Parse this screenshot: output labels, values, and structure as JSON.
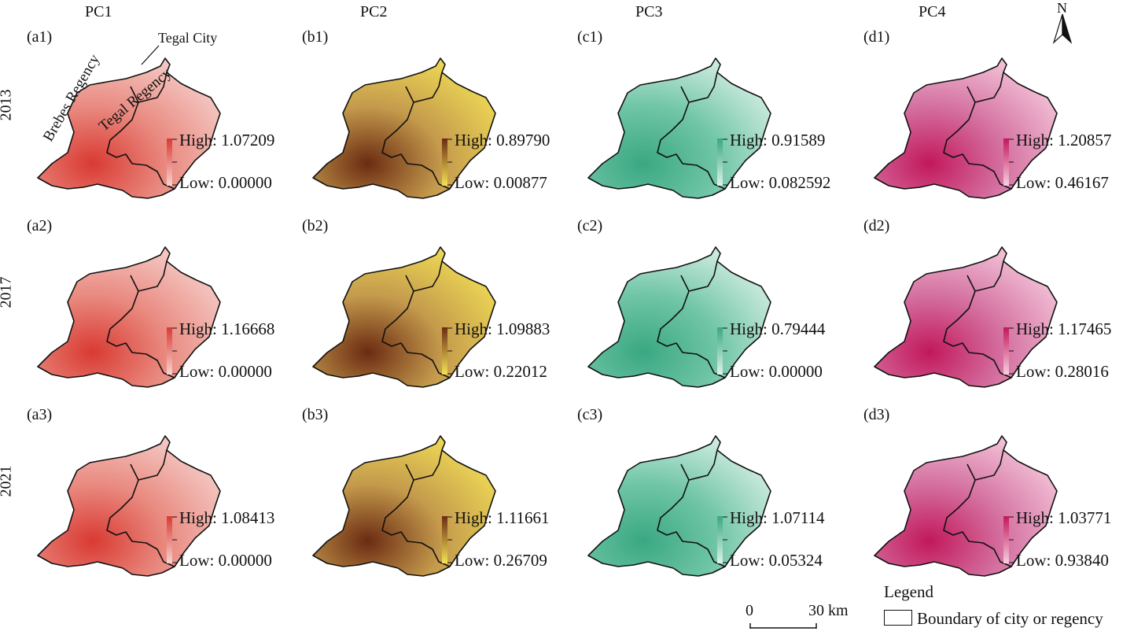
{
  "columns": [
    "PC1",
    "PC2",
    "PC3",
    "PC4"
  ],
  "rows": [
    "2013",
    "2017",
    "2021"
  ],
  "panels": [
    [
      {
        "label": "(a1)",
        "high": "High: 1.07209",
        "low": "Low: 0.00000"
      },
      {
        "label": "(b1)",
        "high": "High: 0.89790",
        "low": "Low: 0.00877"
      },
      {
        "label": "(c1)",
        "high": "High: 0.91589",
        "low": "Low: 0.082592"
      },
      {
        "label": "(d1)",
        "high": "High: 1.20857",
        "low": "Low: 0.46167"
      }
    ],
    [
      {
        "label": "(a2)",
        "high": "High: 1.16668",
        "low": "Low: 0.00000"
      },
      {
        "label": "(b2)",
        "high": "High: 1.09883",
        "low": "Low: 0.22012"
      },
      {
        "label": "(c2)",
        "high": "High: 0.79444",
        "low": "Low: 0.00000"
      },
      {
        "label": "(d2)",
        "high": "High: 1.17465",
        "low": "Low: 0.28016"
      }
    ],
    [
      {
        "label": "(a3)",
        "high": "High: 1.08413",
        "low": "Low: 0.00000"
      },
      {
        "label": "(b3)",
        "high": "High: 1.11661",
        "low": "Low: 0.26709"
      },
      {
        "label": "(c3)",
        "high": "High: 1.07114",
        "low": "Low: 0.05324"
      },
      {
        "label": "(d3)",
        "high": "High: 1.03771",
        "low": "Low: 0.93840"
      }
    ]
  ],
  "colors": {
    "pc1": {
      "low": "#f6d4d0",
      "high": "#d93a32",
      "fill": "#e98a80"
    },
    "pc2": {
      "low": "#f4e257",
      "high": "#6b2b12",
      "fill": "#c49a4c"
    },
    "pc3": {
      "low": "#dff2ea",
      "high": "#3aa882",
      "fill": "#6fc5a6"
    },
    "pc4": {
      "low": "#f7cfe0",
      "high": "#c2185b",
      "fill": "#d470a0"
    }
  },
  "annotations": {
    "tegal_city": "Tegal City",
    "brebes": "Brebes Regency",
    "tegal_regency": "Tegal Regency"
  },
  "north_label": "N",
  "scale": {
    "start": "0",
    "end": "30 km"
  },
  "legend": {
    "title": "Legend",
    "entry": "Boundary of city or regency"
  }
}
